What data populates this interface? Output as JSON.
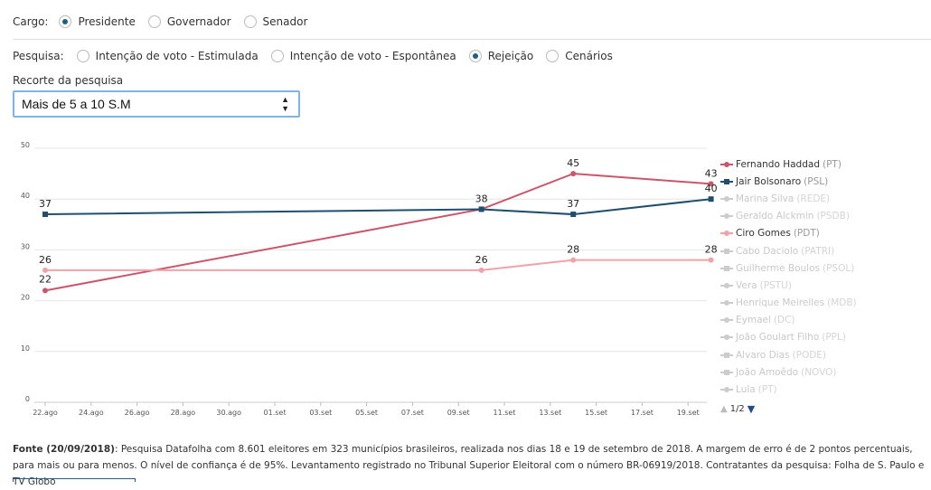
{
  "cargo": {
    "label": "Cargo:",
    "options": [
      {
        "label": "Presidente",
        "selected": true
      },
      {
        "label": "Governador",
        "selected": false
      },
      {
        "label": "Senador",
        "selected": false
      }
    ]
  },
  "pesquisa": {
    "label": "Pesquisa:",
    "options": [
      {
        "label": "Intenção de voto - Estimulada",
        "selected": false
      },
      {
        "label": "Intenção de voto - Espontânea",
        "selected": false
      },
      {
        "label": "Rejeição",
        "selected": true
      },
      {
        "label": "Cenários",
        "selected": false
      }
    ]
  },
  "recorte": {
    "label": "Recorte da pesquisa",
    "value": "Mais de 5 a 10 S.M"
  },
  "chart_data": {
    "type": "line",
    "ylim": [
      0,
      50
    ],
    "yticks": [
      0,
      10,
      20,
      30,
      40,
      50
    ],
    "x_ticks": [
      "22.ago",
      "24.ago",
      "26.ago",
      "28.ago",
      "30.ago",
      "01.set",
      "03.set",
      "05.set",
      "07.set",
      "09.set",
      "11.set",
      "13.set",
      "15.set",
      "17.set",
      "19.set"
    ],
    "x": [
      "22.ago",
      "10.set",
      "14.set",
      "20.set"
    ],
    "grid": true,
    "legend_position": "right",
    "series": [
      {
        "name": "Fernando Haddad",
        "party": "(PT)",
        "color": "#c9566b",
        "marker": "circle",
        "active": true,
        "values": [
          22,
          38,
          45,
          43
        ]
      },
      {
        "name": "Jair Bolsonaro",
        "party": "(PSL)",
        "color": "#1f4e6e",
        "marker": "square",
        "active": true,
        "values": [
          37,
          38,
          37,
          40
        ]
      },
      {
        "name": "Ciro Gomes",
        "party": "(PDT)",
        "color": "#f0a2a8",
        "marker": "circle",
        "active": true,
        "values": [
          26,
          26,
          28,
          28
        ]
      }
    ],
    "legend": [
      {
        "name": "Fernando Haddad",
        "party": "(PT)",
        "color": "#c9566b",
        "marker": "circle",
        "active": true
      },
      {
        "name": "Jair Bolsonaro",
        "party": "(PSL)",
        "color": "#1f4e6e",
        "marker": "square",
        "active": true
      },
      {
        "name": "Marina Silva",
        "party": "(REDE)",
        "color": "#cccccc",
        "marker": "circle",
        "active": false
      },
      {
        "name": "Geraldo Alckmin",
        "party": "(PSDB)",
        "color": "#cccccc",
        "marker": "circle",
        "active": false
      },
      {
        "name": "Ciro Gomes",
        "party": "(PDT)",
        "color": "#f0a2a8",
        "marker": "circle",
        "active": true
      },
      {
        "name": "Cabo Daciolo",
        "party": "(PATRI)",
        "color": "#cccccc",
        "marker": "square",
        "active": false
      },
      {
        "name": "Guilherme Boulos",
        "party": "(PSOL)",
        "color": "#cccccc",
        "marker": "square",
        "active": false
      },
      {
        "name": "Vera",
        "party": "(PSTU)",
        "color": "#cccccc",
        "marker": "circle",
        "active": false
      },
      {
        "name": "Henrique Meirelles",
        "party": "(MDB)",
        "color": "#cccccc",
        "marker": "circle",
        "active": false
      },
      {
        "name": "Eymael",
        "party": "(DC)",
        "color": "#cccccc",
        "marker": "circle",
        "active": false
      },
      {
        "name": "João Goulart Filho",
        "party": "(PPL)",
        "color": "#cccccc",
        "marker": "circle",
        "active": false
      },
      {
        "name": "Alvaro Dias",
        "party": "(PODE)",
        "color": "#cccccc",
        "marker": "square",
        "active": false
      },
      {
        "name": "João Amoêdo",
        "party": "(NOVO)",
        "color": "#cccccc",
        "marker": "square",
        "active": false
      },
      {
        "name": "Lula",
        "party": "(PT)",
        "color": "#cccccc",
        "marker": "circle",
        "active": false
      }
    ],
    "pager": {
      "text": "1/2"
    }
  },
  "footer": {
    "bold": "Fonte (20/09/2018)",
    "text": ": Pesquisa Datafolha com 8.601 eleitores em 323 municípios brasileiros, realizada nos dias 18 e 19 de setembro de 2018. A margem de erro é de 2 pontos percentuais, para mais ou para menos. O nível de confiança é de 95%. Levantamento registrado no Tribunal Superior Eleitoral com o número BR-06919/2018. Contratantes da pesquisa: Folha de S. Paulo e TV Globo"
  }
}
